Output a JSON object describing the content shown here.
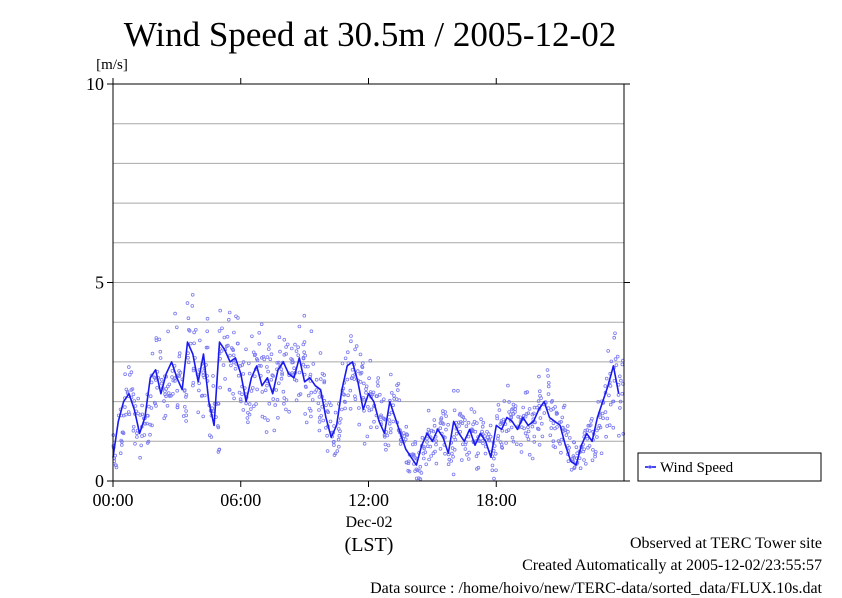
{
  "chart_data": {
    "type": "line",
    "title": "Wind Speed at 30.5m / 2005-12-02",
    "ylabel": "[m/s]",
    "xlabel": "(LST)",
    "date_label": "Dec-02",
    "ylim": [
      0,
      10
    ],
    "xlim_hours": [
      0,
      24
    ],
    "y_ticks": [
      0,
      5,
      10
    ],
    "y_gridlines": [
      1,
      2,
      3,
      4,
      5,
      6,
      7,
      8,
      9
    ],
    "x_ticks": [
      {
        "hour": 0,
        "label": "00:00"
      },
      {
        "hour": 6,
        "label": "06:00"
      },
      {
        "hour": 12,
        "label": "12:00"
      },
      {
        "hour": 18,
        "label": "18:00"
      }
    ],
    "grid": true,
    "legend": {
      "position": "right",
      "entries": [
        "Wind Speed"
      ]
    },
    "colors": {
      "line": "#1a1aee",
      "points": "#7b7bf0"
    },
    "series": [
      {
        "name": "Wind Speed",
        "x": [
          0.0,
          0.25,
          0.5,
          0.75,
          1.0,
          1.25,
          1.5,
          1.75,
          2.0,
          2.25,
          2.5,
          2.75,
          3.0,
          3.25,
          3.5,
          3.75,
          4.0,
          4.25,
          4.5,
          4.75,
          5.0,
          5.25,
          5.5,
          5.75,
          6.0,
          6.25,
          6.5,
          6.75,
          7.0,
          7.25,
          7.5,
          7.75,
          8.0,
          8.25,
          8.5,
          8.75,
          9.0,
          9.25,
          9.5,
          9.75,
          10.0,
          10.25,
          10.5,
          10.75,
          11.0,
          11.25,
          11.5,
          11.75,
          12.0,
          12.25,
          12.5,
          12.75,
          13.0,
          13.25,
          13.5,
          13.75,
          14.0,
          14.25,
          14.5,
          14.75,
          15.0,
          15.25,
          15.5,
          15.75,
          16.0,
          16.25,
          16.5,
          16.75,
          17.0,
          17.25,
          17.5,
          17.75,
          18.0,
          18.25,
          18.5,
          18.75,
          19.0,
          19.25,
          19.5,
          19.75,
          20.0,
          20.25,
          20.5,
          20.75,
          21.0,
          21.25,
          21.5,
          21.75,
          22.0,
          22.25,
          22.5,
          22.75,
          23.0,
          23.25,
          23.5,
          23.75
        ],
        "values": [
          0.6,
          1.5,
          2.0,
          2.2,
          1.8,
          1.2,
          1.6,
          2.6,
          2.8,
          2.2,
          2.7,
          3.0,
          2.6,
          2.3,
          3.5,
          3.2,
          2.5,
          3.2,
          2.0,
          1.4,
          3.5,
          3.3,
          3.0,
          3.1,
          2.7,
          2.0,
          2.6,
          2.9,
          2.4,
          2.6,
          2.2,
          2.8,
          3.0,
          2.7,
          2.6,
          3.1,
          2.5,
          2.6,
          2.4,
          2.3,
          1.6,
          1.1,
          1.4,
          2.3,
          2.9,
          3.0,
          2.5,
          1.8,
          2.2,
          2.0,
          1.5,
          1.2,
          2.0,
          1.6,
          1.2,
          0.8,
          0.6,
          0.4,
          0.9,
          1.2,
          1.0,
          1.3,
          1.1,
          0.7,
          1.5,
          1.2,
          1.0,
          1.3,
          0.9,
          1.2,
          1.0,
          0.6,
          1.4,
          1.3,
          1.6,
          1.5,
          1.3,
          1.6,
          1.4,
          1.5,
          1.8,
          2.0,
          1.6,
          1.5,
          1.4,
          0.9,
          0.5,
          0.4,
          0.9,
          1.2,
          1.0,
          1.6,
          2.0,
          2.4,
          2.9,
          2.2
        ]
      }
    ]
  },
  "footer": {
    "line1": "Observed at TERC Tower site",
    "line2": "Created Automatically at 2005-12-02/23:55:57",
    "line3": "Data source : /home/hoivo/new/TERC-data/sorted_data/FLUX.10s.dat"
  }
}
